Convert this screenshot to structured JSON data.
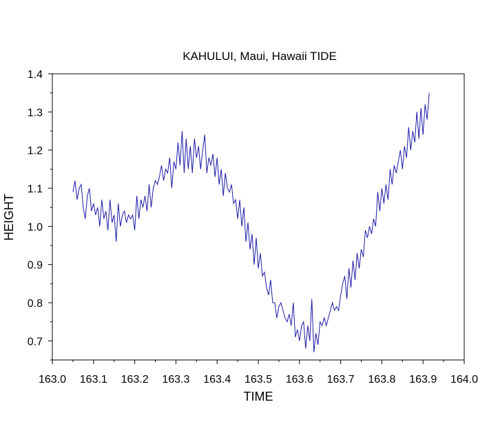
{
  "chart_data": {
    "type": "line",
    "title": "KAHULUI, Maui, Hawaii TIDE",
    "xlabel": "TIME",
    "ylabel": "HEIGHT",
    "xlim": [
      163.0,
      164.0
    ],
    "ylim": [
      0.65,
      1.4
    ],
    "x_ticks": [
      "163.0",
      "163.1",
      "163.2",
      "163.3",
      "163.4",
      "163.5",
      "163.6",
      "163.7",
      "163.8",
      "163.9",
      "164.0"
    ],
    "y_ticks": [
      "0.7",
      "0.8",
      "0.9",
      "1.0",
      "1.1",
      "1.2",
      "1.3",
      "1.4"
    ],
    "grid": false,
    "line_color": "#1a1aa6",
    "series": [
      {
        "x": [
          163.05,
          163.055,
          163.06,
          163.065,
          163.07,
          163.075,
          163.08,
          163.085,
          163.09,
          163.095,
          163.1,
          163.105,
          163.11,
          163.115,
          163.12,
          163.125,
          163.13,
          163.135,
          163.14,
          163.145,
          163.15,
          163.155,
          163.16,
          163.165,
          163.17,
          163.175,
          163.18,
          163.185,
          163.19,
          163.195,
          163.2,
          163.205,
          163.21,
          163.215,
          163.22,
          163.225,
          163.23,
          163.235,
          163.24,
          163.245,
          163.25,
          163.255,
          163.26,
          163.265,
          163.27,
          163.275,
          163.28,
          163.285,
          163.29,
          163.295,
          163.3,
          163.305,
          163.31,
          163.315,
          163.32,
          163.325,
          163.33,
          163.335,
          163.34,
          163.345,
          163.35,
          163.355,
          163.36,
          163.365,
          163.37,
          163.375,
          163.38,
          163.385,
          163.39,
          163.395,
          163.4,
          163.405,
          163.41,
          163.415,
          163.42,
          163.425,
          163.43,
          163.435,
          163.44,
          163.445,
          163.45,
          163.455,
          163.46,
          163.465,
          163.47,
          163.475,
          163.48,
          163.485,
          163.49,
          163.495,
          163.5,
          163.505,
          163.51,
          163.515,
          163.52,
          163.525,
          163.53,
          163.535,
          163.54,
          163.545,
          163.55,
          163.555,
          163.56,
          163.565,
          163.57,
          163.575,
          163.58,
          163.585,
          163.59,
          163.595,
          163.6,
          163.605,
          163.61,
          163.615,
          163.62,
          163.625,
          163.63,
          163.635,
          163.64,
          163.645,
          163.65,
          163.655,
          163.66,
          163.665,
          163.67,
          163.675,
          163.68,
          163.685,
          163.69,
          163.695,
          163.7,
          163.705,
          163.71,
          163.715,
          163.72,
          163.725,
          163.73,
          163.735,
          163.74,
          163.745,
          163.75,
          163.755,
          163.76,
          163.765,
          163.77,
          163.775,
          163.78,
          163.785,
          163.79,
          163.795,
          163.8,
          163.805,
          163.81,
          163.815,
          163.82,
          163.825,
          163.83,
          163.835,
          163.84,
          163.845,
          163.85,
          163.855,
          163.86,
          163.865,
          163.87,
          163.875,
          163.88,
          163.885,
          163.89,
          163.895,
          163.9,
          163.905,
          163.91,
          163.915
        ],
        "y": [
          1.09,
          1.12,
          1.07,
          1.1,
          1.11,
          1.05,
          1.02,
          1.08,
          1.1,
          1.04,
          1.06,
          1.03,
          1.05,
          1.0,
          1.07,
          1.02,
          1.04,
          0.99,
          1.07,
          1.01,
          1.03,
          0.96,
          1.06,
          1.0,
          1.03,
          1.04,
          1.01,
          1.03,
          1.02,
          1.03,
          0.99,
          1.08,
          1.02,
          1.07,
          1.05,
          1.08,
          1.04,
          1.11,
          1.05,
          1.1,
          1.12,
          1.11,
          1.13,
          1.16,
          1.12,
          1.15,
          1.14,
          1.18,
          1.1,
          1.17,
          1.15,
          1.22,
          1.16,
          1.25,
          1.14,
          1.23,
          1.15,
          1.21,
          1.14,
          1.23,
          1.18,
          1.21,
          1.15,
          1.2,
          1.24,
          1.14,
          1.18,
          1.16,
          1.19,
          1.13,
          1.18,
          1.11,
          1.15,
          1.08,
          1.14,
          1.1,
          1.09,
          1.11,
          1.06,
          1.07,
          1.02,
          1.07,
          1.0,
          1.05,
          0.96,
          1.01,
          0.94,
          0.98,
          0.9,
          0.97,
          0.89,
          0.93,
          0.87,
          0.88,
          0.84,
          0.82,
          0.86,
          0.8,
          0.8,
          0.76,
          0.79,
          0.8,
          0.78,
          0.76,
          0.75,
          0.77,
          0.74,
          0.8,
          0.71,
          0.73,
          0.7,
          0.74,
          0.75,
          0.68,
          0.74,
          0.7,
          0.81,
          0.67,
          0.72,
          0.69,
          0.75,
          0.74,
          0.76,
          0.74,
          0.76,
          0.78,
          0.8,
          0.78,
          0.79,
          0.78,
          0.82,
          0.85,
          0.87,
          0.81,
          0.89,
          0.84,
          0.91,
          0.86,
          0.93,
          0.89,
          0.94,
          0.92,
          0.99,
          0.97,
          1.0,
          0.98,
          1.02,
          1.0,
          1.09,
          1.04,
          1.1,
          1.06,
          1.11,
          1.07,
          1.15,
          1.11,
          1.16,
          1.14,
          1.17,
          1.2,
          1.15,
          1.21,
          1.18,
          1.26,
          1.2,
          1.25,
          1.22,
          1.3,
          1.23,
          1.31,
          1.24,
          1.32,
          1.28,
          1.35
        ]
      }
    ]
  }
}
